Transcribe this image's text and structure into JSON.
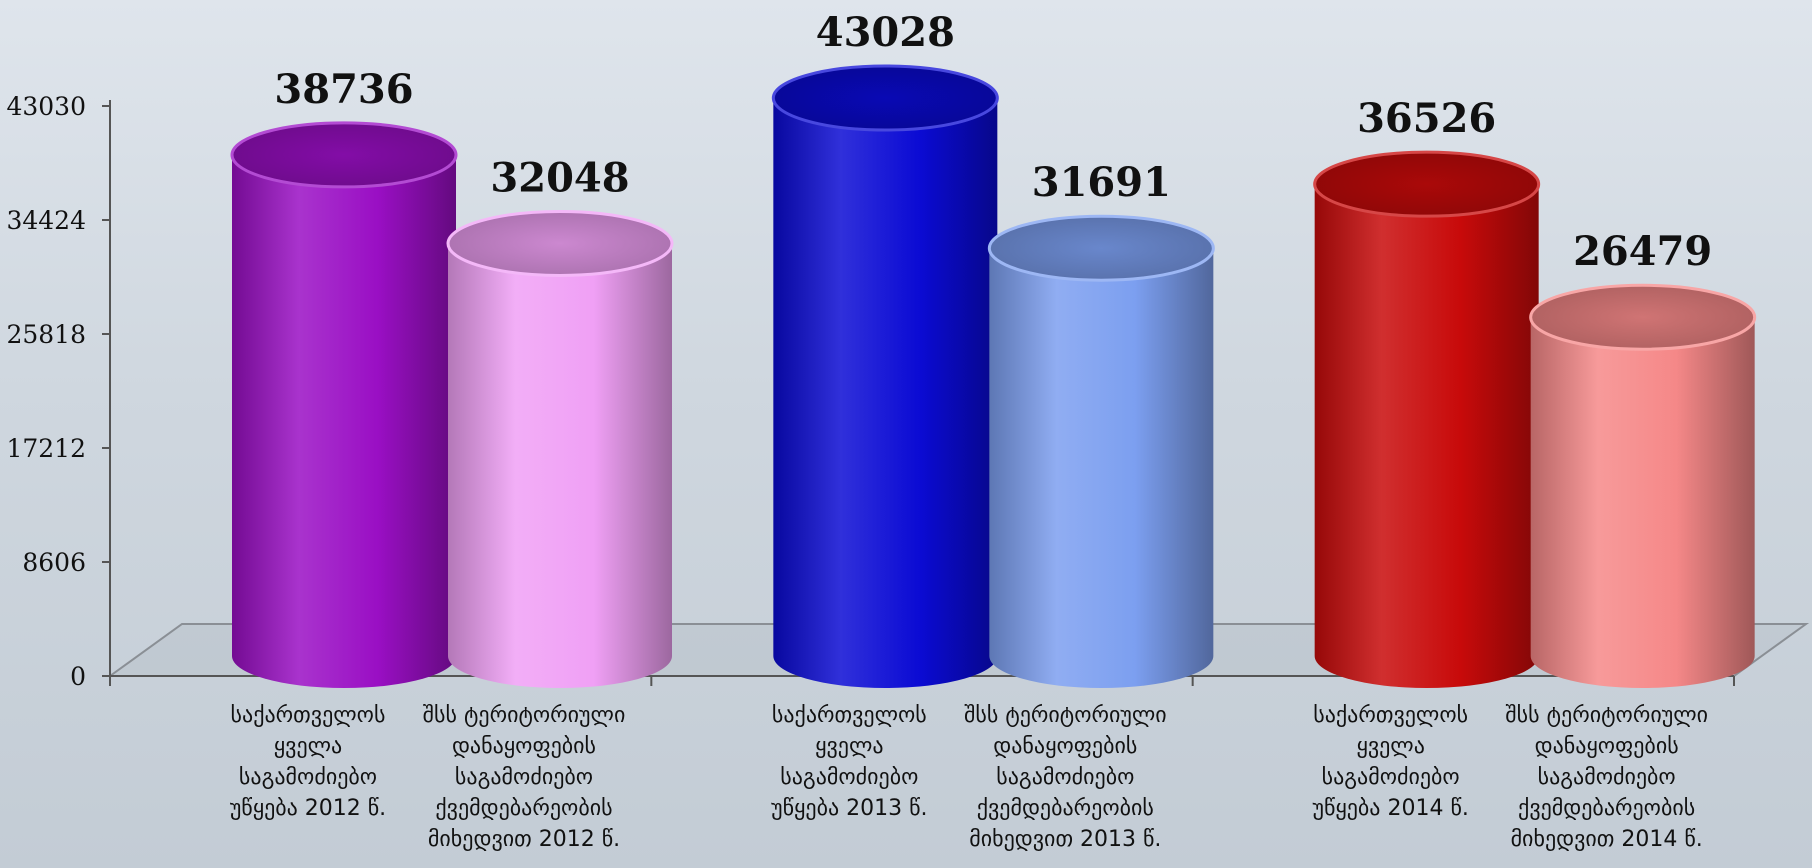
{
  "chart_data": {
    "type": "bar",
    "style": "3d-cylinder",
    "title": "",
    "xlabel": "",
    "ylabel": "",
    "ylim": [
      0,
      43030
    ],
    "yticks": [
      "0",
      "8606",
      "17212",
      "25818",
      "34424",
      "43030"
    ],
    "grid": false,
    "legend": "none",
    "categories": [
      "საქართველოს\nყველა\nსაგამოძიებო\nუწყება 2012 წ.",
      "შსს ტერიტორიული\nდანაყოფების\nსაგამოძიებო\nქვემდებარეობის\nმიხედვით 2012 წ.",
      "საქართველოს\nყველა\nსაგამოძიებო\nუწყება 2013 წ.",
      "შსს ტერიტორიული\nდანაყოფების\nსაგამოძიებო\nქვემდებარეობის\nმიხედვით 2013 წ.",
      "საქართველოს\nყველა\nსაგამოძიებო\nუწყება 2014 წ.",
      "შსს ტერიტორიული\nდანაყოფების\nსაგამოძიებო\nქვემდებარეობის\nმიხედვით 2014 წ."
    ],
    "values": [
      38736,
      32048,
      43028,
      31691,
      36526,
      26479
    ],
    "value_labels": [
      "38736",
      "32048",
      "43028",
      "31691",
      "36526",
      "26479"
    ],
    "colors": [
      "#9a0fc4",
      "#f0a0f5",
      "#0b0bd4",
      "#7c9ff0",
      "#c80a0a",
      "#f58888"
    ]
  }
}
